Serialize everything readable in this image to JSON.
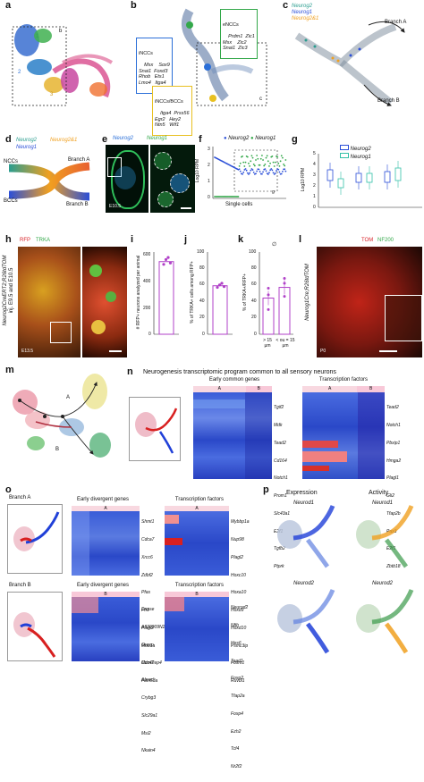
{
  "panels": {
    "a": {
      "label": "a",
      "cluster1": "1",
      "cluster2": "2",
      "cluster3": "3",
      "box_label": "b"
    },
    "b": {
      "label": "b",
      "enccs_title": "eNCCs",
      "enccs_genes": "Prdm1  Zic1\nMsx    Zic2\nSnai1  Zic3",
      "inccs_title": "iNCCs",
      "inccs_genes": "Msx    Sox9\nSnai1  Foxd3\nRhob   Ets1\nLmo4   Itga4",
      "bccs_title": "iNCCs/BCCs",
      "bccs_genes": "Itga4  Prss56\nEgr2   Hey2\nNtn5   Wif1",
      "box_label": "c"
    },
    "c": {
      "label": "c",
      "legend": [
        "Neurog2",
        "Neurog1",
        "Neurog2&1"
      ],
      "branch_a": "Branch A",
      "branch_b": "Branch B"
    },
    "d": {
      "label": "d",
      "neurog2": "Neurog2",
      "neurog21": "Neurog2&1",
      "neurog1": "Neurog1",
      "nccs": "NCCs",
      "bccs": "BCCs",
      "branch_a": "Branch A",
      "branch_b": "Branch B"
    },
    "e": {
      "label": "e",
      "neurog2": "Neurog2",
      "neurog1": "Neurog1",
      "stage": "E10.5"
    },
    "f": {
      "label": "f",
      "legend": [
        "Neurog2",
        "Neurog1"
      ],
      "ylabel": "Log10 RPM",
      "xlabel": "Single cells",
      "yticks": [
        "0",
        "1",
        "2",
        "3"
      ],
      "box_label": "g"
    },
    "g": {
      "label": "g",
      "legend": [
        "Neurog2",
        "Neurog1"
      ],
      "ylabel": "Log10 RPM",
      "yticks": [
        "0",
        "1",
        "2",
        "3",
        "4",
        "5"
      ]
    },
    "h": {
      "label": "h",
      "rfp": "RFP",
      "trka": "TRKA",
      "genotype": "Neurog2CreERT2;R26tdTOM",
      "inj": "inj. E9.5 and E10.5",
      "stage": "E13.5"
    },
    "i": {
      "label": "i",
      "ylabel": "# RFP+ neurons analyzed per animal",
      "yticks": [
        "0",
        "200",
        "400",
        "600"
      ],
      "value": 530
    },
    "j": {
      "label": "j",
      "ylabel": "% of TRKA+ cells among RFP+",
      "yticks": [
        "0",
        "20",
        "40",
        "60",
        "80",
        "100"
      ],
      "value": 59
    },
    "k": {
      "label": "k",
      "ylabel": "% of TRKA+/RFP+",
      "yticks": [
        "0",
        "20",
        "40",
        "60",
        "80",
        "100"
      ],
      "xlabels": [
        "> 15 µm",
        "< ou = 15 µm"
      ],
      "values": [
        44,
        57
      ],
      "symbol": "∅"
    },
    "l": {
      "label": "l",
      "tom": "TOM",
      "nf200": "NF200",
      "genotype": "Neurog1Cre;R26tdTOM",
      "stage": "P0"
    },
    "m": {
      "label": "m",
      "branch_a": "A",
      "branch_b": "B"
    },
    "n": {
      "label": "n",
      "title": "Neurogenesis transcriptomic program common to all sensory neurons",
      "early_title": "Early common genes",
      "tf_title": "Transcription factors",
      "col_a": "A",
      "col_b": "B",
      "early_genes": [
        "Tgif2",
        "Mdk",
        "Tead2",
        "Cd164",
        "Notch1",
        "Prom1",
        "Slc43a1",
        "E2f1",
        "Tgfb2",
        "Ptprk"
      ],
      "tf_genes": [
        "Tead2",
        "Notch1",
        "Pbxip1",
        "Hmga2",
        "Plagl1",
        "Gli2",
        "Tfap2b",
        "Pax3",
        "E2f1",
        "Zbtb18"
      ]
    },
    "o": {
      "label": "o",
      "branch_a": "Branch A",
      "branch_b": "Branch B",
      "early_div_title": "Early divergent genes",
      "tf_title": "Transcription factors",
      "col_a": "A",
      "col_b": "B",
      "a_early": [
        "Shmt1",
        "Cdca7",
        "Xrcc6",
        "Zdbf2",
        "Pfas",
        "Fn1",
        "Plagl2",
        "Mob1a",
        "Mcm7",
        "Fam53a"
      ],
      "a_tf": [
        "Mybbp1a",
        "Nup98",
        "Plagl2",
        "Hoxc10",
        "Hoxa10",
        "Hoxd9",
        "Hoxd10",
        "Psmc3ip",
        "Foxm1",
        "Ruvbl1"
      ],
      "b_early": [
        "Dnase",
        "A330009N23",
        "Grasp",
        "Cdc42ep4",
        "Abracl",
        "Crybg3",
        "Slc29a1",
        "Msi2",
        "Nkain4"
      ],
      "b_tf": [
        "Neurod2",
        "Nfib",
        "Hes6",
        "Tead1",
        "Foxp2",
        "Tfap2a",
        "Foxp4",
        "Ezh2",
        "Tcf4",
        "Nr2f2"
      ]
    },
    "p": {
      "label": "p",
      "expression": "Expression",
      "activity": "Activity",
      "gene1": "Neurod1",
      "gene2": "Neurod2"
    }
  },
  "colors": {
    "teal": "#2a9d8f",
    "blue": "#2b4fd8",
    "orange": "#f0a020",
    "green": "#33a84a",
    "red": "#d8232a",
    "purple": "#b040c8",
    "yellow": "#e8c020"
  }
}
